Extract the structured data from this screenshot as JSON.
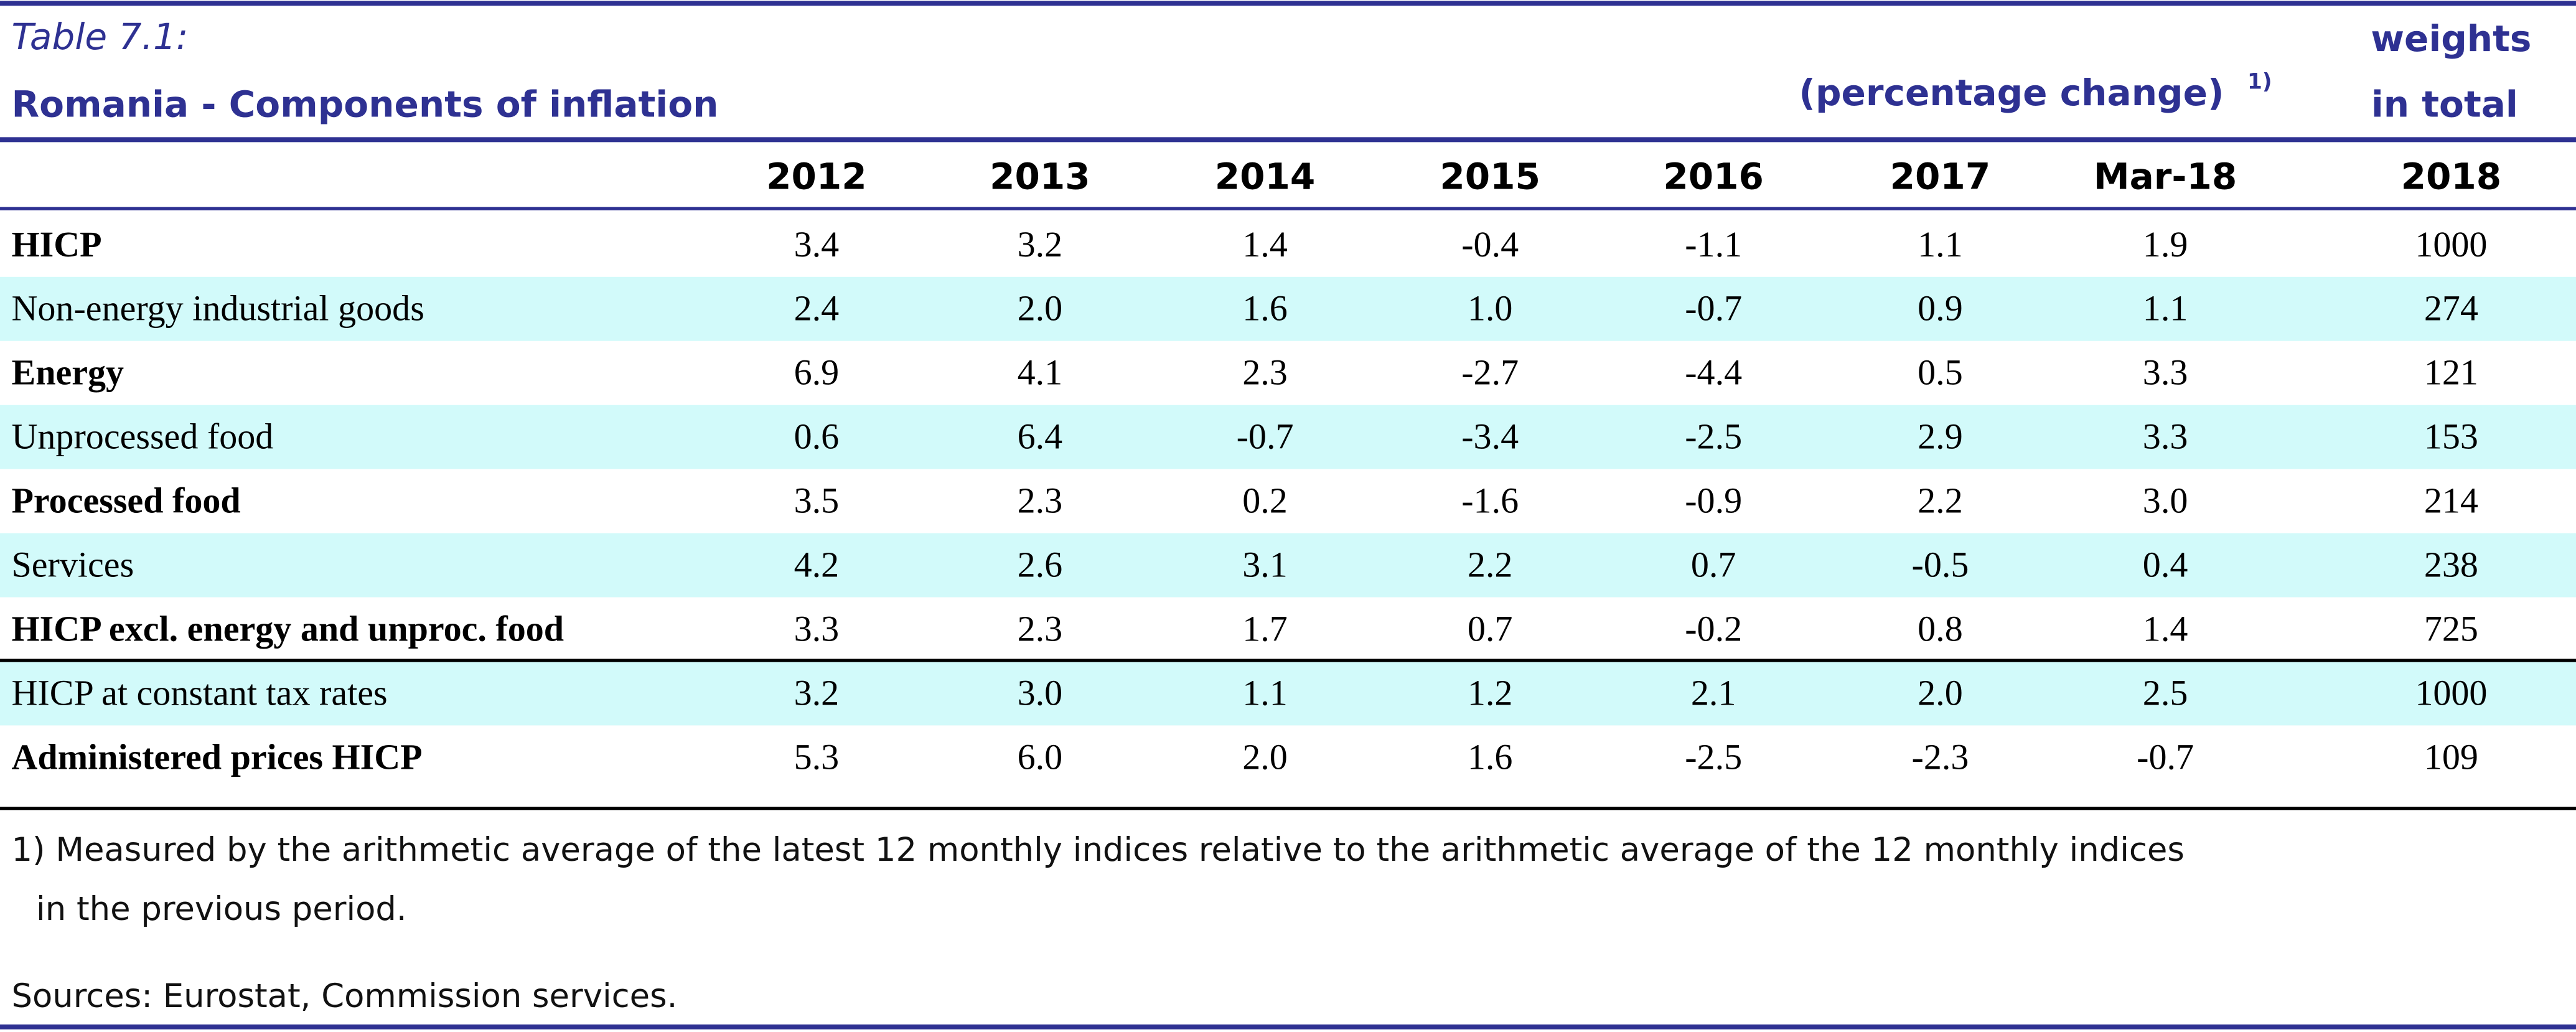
{
  "header": {
    "table_label": "Table 7.1:",
    "title": "Romania - Components of inflation",
    "unit": "(percentage change)",
    "unit_note": "1)",
    "weights_line1": "weights",
    "weights_line2": "in total"
  },
  "table": {
    "columns": [
      "2012",
      "2013",
      "2014",
      "2015",
      "2016",
      "2017",
      "Mar-18",
      "2018"
    ],
    "rows": [
      [
        "HICP",
        "3.4",
        "3.2",
        "1.4",
        "-0.4",
        "-1.1",
        "1.1",
        "1.9",
        "1000"
      ],
      [
        "Non-energy industrial goods",
        "2.4",
        "2.0",
        "1.6",
        "1.0",
        "-0.7",
        "0.9",
        "1.1",
        "274"
      ],
      [
        "Energy",
        "6.9",
        "4.1",
        "2.3",
        "-2.7",
        "-4.4",
        "0.5",
        "3.3",
        "121"
      ],
      [
        "Unprocessed food",
        "0.6",
        "6.4",
        "-0.7",
        "-3.4",
        "-2.5",
        "2.9",
        "3.3",
        "153"
      ],
      [
        "Processed food",
        "3.5",
        "2.3",
        "0.2",
        "-1.6",
        "-0.9",
        "2.2",
        "3.0",
        "214"
      ],
      [
        "Services",
        "4.2",
        "2.6",
        "3.1",
        "2.2",
        "0.7",
        "-0.5",
        "0.4",
        "238"
      ],
      [
        "HICP excl. energy and unproc. food",
        "3.3",
        "2.3",
        "1.7",
        "0.7",
        "-0.2",
        "0.8",
        "1.4",
        "725"
      ],
      [
        "HICP at constant tax rates",
        "3.2",
        "3.0",
        "1.1",
        "1.2",
        "2.1",
        "2.0",
        "2.5",
        "1000"
      ],
      [
        "Administered prices HICP",
        "5.3",
        "6.0",
        "2.0",
        "1.6",
        "-2.5",
        "-2.3",
        "-0.7",
        "109"
      ]
    ]
  },
  "footnote": [
    "1) Measured by the arithmetic average of the latest 12 monthly indices relative to the arithmetic average of the 12 monthly indices",
    "in the previous period."
  ],
  "source": "Sources: Eurostat, Commission services."
}
